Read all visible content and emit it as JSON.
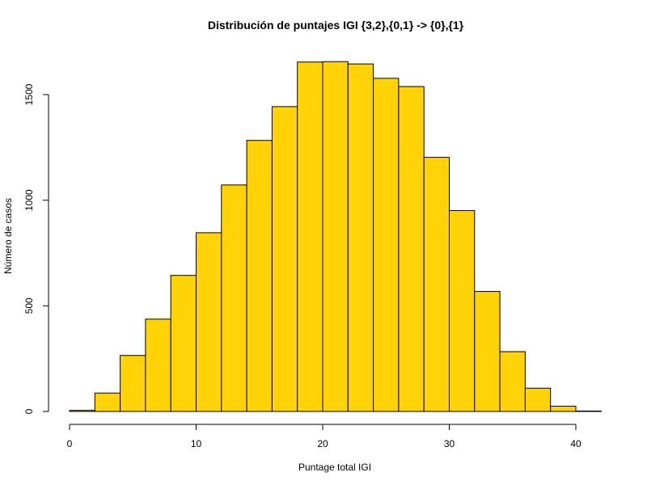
{
  "chart_data": {
    "type": "bar",
    "title": "Distribución de puntajes IGI {3,2},{0,1} -> {0},{1}",
    "xlabel": "Puntage total IGI",
    "ylabel": "Número de casos",
    "bins": [
      {
        "start": 0,
        "end": 2,
        "count": 5
      },
      {
        "start": 2,
        "end": 4,
        "count": 87
      },
      {
        "start": 4,
        "end": 6,
        "count": 265
      },
      {
        "start": 6,
        "end": 8,
        "count": 437
      },
      {
        "start": 8,
        "end": 10,
        "count": 644
      },
      {
        "start": 10,
        "end": 12,
        "count": 846
      },
      {
        "start": 12,
        "end": 14,
        "count": 1072
      },
      {
        "start": 14,
        "end": 16,
        "count": 1283
      },
      {
        "start": 16,
        "end": 18,
        "count": 1443
      },
      {
        "start": 18,
        "end": 20,
        "count": 1654
      },
      {
        "start": 20,
        "end": 22,
        "count": 1656
      },
      {
        "start": 22,
        "end": 24,
        "count": 1645
      },
      {
        "start": 24,
        "end": 26,
        "count": 1577
      },
      {
        "start": 26,
        "end": 28,
        "count": 1538
      },
      {
        "start": 28,
        "end": 30,
        "count": 1203
      },
      {
        "start": 30,
        "end": 32,
        "count": 951
      },
      {
        "start": 32,
        "end": 34,
        "count": 568
      },
      {
        "start": 34,
        "end": 36,
        "count": 283
      },
      {
        "start": 36,
        "end": 38,
        "count": 110
      },
      {
        "start": 38,
        "end": 40,
        "count": 25
      },
      {
        "start": 40,
        "end": 42,
        "count": 2
      }
    ],
    "xlim": [
      0,
      42
    ],
    "ylim": [
      0,
      1656
    ],
    "x_ticks": [
      0,
      10,
      20,
      30,
      40
    ],
    "y_ticks": [
      0,
      500,
      1000,
      1500
    ],
    "bar_color": "#FFD307",
    "bar_edge_color": "#000000",
    "grid": false
  }
}
